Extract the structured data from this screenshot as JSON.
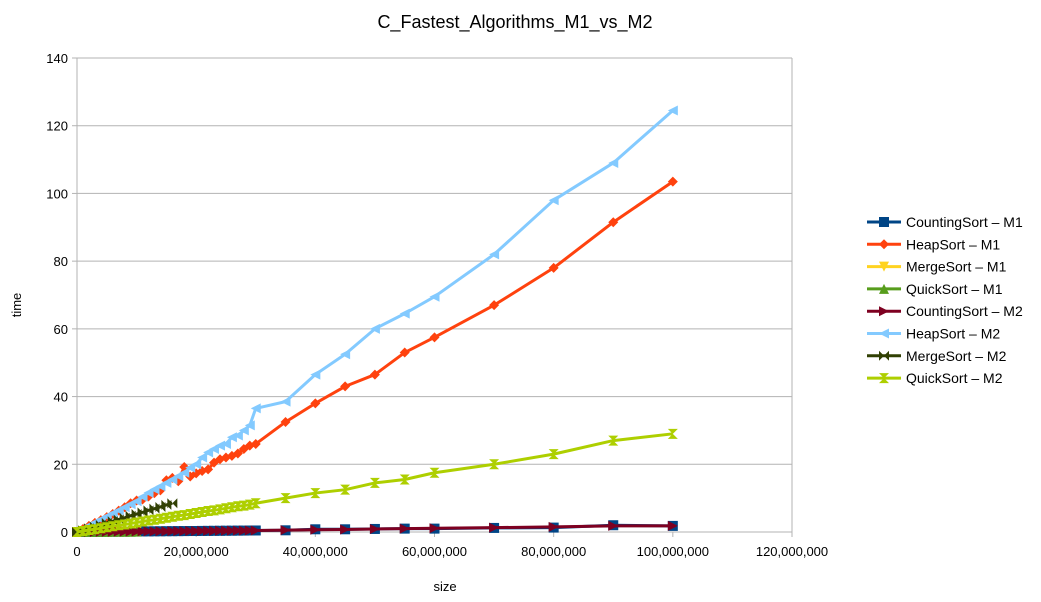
{
  "chart_data": {
    "type": "line",
    "title": "C_Fastest_Algorithms_M1_vs_M2",
    "xlabel": "size",
    "ylabel": "time",
    "xlim": [
      0,
      120000000
    ],
    "ylim": [
      0,
      140
    ],
    "x_ticks": [
      0,
      20000000,
      40000000,
      60000000,
      80000000,
      100000000,
      120000000
    ],
    "x_tick_labels": [
      "0",
      "20,000,000",
      "40,000,000",
      "60,000,000",
      "80,000,000",
      "100,000,000",
      "120,000,000"
    ],
    "y_ticks": [
      0,
      20,
      40,
      60,
      80,
      100,
      120,
      140
    ],
    "y_tick_labels": [
      "0",
      "20",
      "40",
      "60",
      "80",
      "100",
      "120",
      "140"
    ],
    "grid": "horizontal",
    "legend_position": "right",
    "x": [
      0,
      1000000,
      2000000,
      3000000,
      4000000,
      5000000,
      6000000,
      7000000,
      8000000,
      9000000,
      10000000,
      11000000,
      12000000,
      13000000,
      14000000,
      15000000,
      16000000,
      17000000,
      18000000,
      19000000,
      20000000,
      21000000,
      22000000,
      23000000,
      24000000,
      25000000,
      26000000,
      27000000,
      28000000,
      29000000,
      30000000,
      35000000,
      40000000,
      45000000,
      50000000,
      55000000,
      60000000,
      70000000,
      80000000,
      90000000,
      100000000
    ],
    "series": [
      {
        "name": "CountingSort – M1",
        "color": "#004586",
        "marker": "square",
        "values": [
          0,
          0.02,
          0.03,
          0.05,
          0.06,
          0.08,
          0.09,
          0.11,
          0.12,
          0.14,
          0.15,
          0.17,
          0.18,
          0.2,
          0.21,
          0.23,
          0.24,
          0.26,
          0.27,
          0.29,
          0.3,
          0.32,
          0.33,
          0.35,
          0.36,
          0.38,
          0.39,
          0.41,
          0.42,
          0.44,
          0.45,
          0.5,
          0.8,
          0.8,
          0.9,
          1,
          1,
          1.2,
          1.3,
          2,
          1.8
        ]
      },
      {
        "name": "HeapSort – M1",
        "color": "#ff420e",
        "marker": "diamond",
        "values": [
          0,
          0.9,
          1.8,
          2.7,
          3.5,
          4.4,
          5.3,
          6.3,
          7.3,
          8.5,
          9.3,
          9.6,
          10.5,
          11.5,
          12.3,
          15.3,
          16,
          15,
          19.2,
          16.4,
          17.3,
          18,
          18.5,
          20.5,
          21.5,
          22,
          22.5,
          23.2,
          24.5,
          25.5,
          26,
          32.5,
          38,
          43,
          46.5,
          53,
          57.5,
          67,
          78,
          91.5,
          103.5
        ]
      },
      {
        "name": "MergeSort – M1",
        "color": "#ffd320",
        "marker": "triangle-down",
        "values": [
          0,
          0.01,
          0.02,
          0.03,
          0.04,
          0.05,
          0.06,
          0.07,
          0.08,
          0.09,
          0.1,
          null,
          null,
          null,
          null,
          null,
          null,
          null,
          null,
          null,
          null,
          null,
          null,
          null,
          null,
          null,
          null,
          null,
          null,
          null,
          null,
          null,
          null,
          null,
          null,
          null,
          null,
          null,
          null,
          null,
          null
        ]
      },
      {
        "name": "QuickSort – M1",
        "color": "#579d1c",
        "marker": "triangle-up",
        "values": [
          0,
          0.01,
          0.02,
          0.03,
          0.04,
          0.05,
          0.06,
          0.07,
          0.08,
          0.09,
          0.1,
          null,
          null,
          null,
          null,
          null,
          null,
          null,
          null,
          null,
          null,
          null,
          null,
          null,
          null,
          null,
          null,
          null,
          null,
          null,
          null,
          null,
          null,
          null,
          null,
          null,
          null,
          null,
          null,
          null,
          null
        ]
      },
      {
        "name": "CountingSort – M2",
        "color": "#7e0021",
        "marker": "triangle-right",
        "values": [
          0,
          0.02,
          0.03,
          0.05,
          0.06,
          0.08,
          0.09,
          0.11,
          0.12,
          0.14,
          0.15,
          0.17,
          0.18,
          0.2,
          0.21,
          0.23,
          0.24,
          0.26,
          0.27,
          0.29,
          0.3,
          0.32,
          0.33,
          0.35,
          0.36,
          0.38,
          0.39,
          0.41,
          0.42,
          0.44,
          0.45,
          0.55,
          0.65,
          0.75,
          0.9,
          1,
          1.1,
          1.3,
          1.5,
          1.8,
          1.8
        ]
      },
      {
        "name": "HeapSort – M2",
        "color": "#83caff",
        "marker": "triangle-left",
        "values": [
          0,
          0.9,
          1.9,
          2.8,
          3.7,
          4.6,
          5.5,
          6.4,
          7.3,
          8.2,
          9.1,
          10.4,
          11.6,
          12.6,
          13.5,
          14.5,
          15.5,
          16.5,
          17.5,
          19,
          20,
          22,
          23.5,
          24.5,
          25.5,
          26,
          28,
          28.5,
          30,
          31.5,
          36.5,
          38.5,
          46.5,
          52.5,
          60,
          64.5,
          69.5,
          82,
          98,
          109,
          124.5
        ]
      },
      {
        "name": "MergeSort – M2",
        "color": "#314004",
        "marker": "bowtie",
        "values": [
          0,
          0.5,
          1.1,
          1.6,
          2.1,
          2.7,
          3.2,
          3.7,
          4.2,
          4.8,
          5.3,
          5.8,
          6.4,
          6.9,
          7.4,
          8,
          8.5,
          null,
          null,
          null,
          null,
          null,
          null,
          null,
          null,
          null,
          null,
          null,
          null,
          null,
          null,
          null,
          null,
          null,
          null,
          null,
          null,
          null,
          null,
          null,
          null
        ]
      },
      {
        "name": "QuickSort – M2",
        "color": "#aecf00",
        "marker": "hourglass",
        "values": [
          0,
          0.3,
          0.6,
          0.8,
          1.1,
          1.4,
          1.7,
          2,
          2.2,
          2.5,
          2.8,
          3.1,
          3.4,
          3.6,
          3.9,
          4.2,
          4.5,
          4.8,
          5,
          5.3,
          5.6,
          5.9,
          6.2,
          6.4,
          6.7,
          7,
          7.3,
          7.6,
          7.8,
          8.1,
          8.5,
          10,
          11.5,
          12.5,
          14.5,
          15.5,
          17.5,
          20,
          23,
          27,
          29
        ]
      }
    ]
  }
}
